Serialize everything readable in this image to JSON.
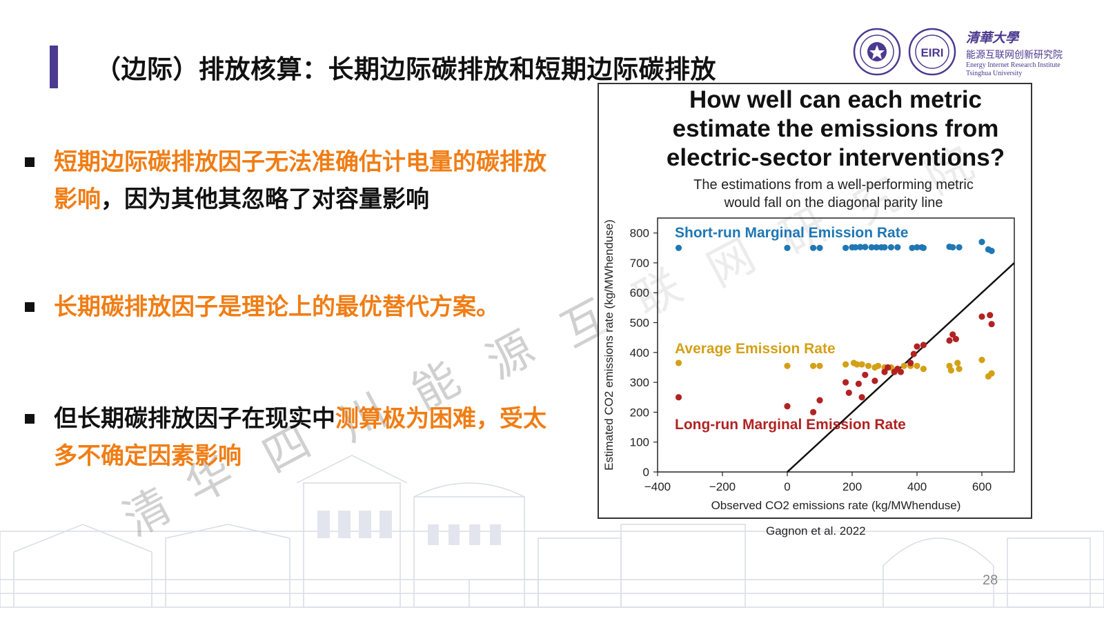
{
  "slide": {
    "title": "（边际）排放核算：长期边际碳排放和短期边际碳排放",
    "page_number": "28",
    "citation": "Gagnon et al. 2022",
    "accent_color": "#4b3a8f",
    "highlight_color": "#f07d14"
  },
  "logos": {
    "script_name": "清華大學",
    "institute_cn": "能源互联网创新研究院",
    "institute_en_1": "Energy Internet Research Institute",
    "institute_en_2": "Tsinghua University",
    "seal_2_text": "EIRI"
  },
  "watermark": [
    "清",
    "华",
    "四",
    "川",
    "能",
    "源",
    "互",
    "联",
    "网",
    "研",
    "究",
    "院"
  ],
  "bullets": {
    "b1_orange": "短期边际碳排放因子无法准确估计电量的碳排放影响",
    "b1_black": "，因为其他其忽略了对容量影响",
    "b2_orange": "长期碳排放因子是理论上的最优替代方案。",
    "b3_black": "但长期碳排放因子在现实中",
    "b3_orange": "测算极为困难，受太多不确定因素影响"
  },
  "chart_data": {
    "type": "scatter",
    "title_lines": [
      "How well can each metric",
      "estimate the emissions from",
      "electric-sector interventions?"
    ],
    "subtitle_lines": [
      "The estimations from a well-performing metric",
      "would fall on the diagonal parity line"
    ],
    "xlabel": "Observed CO2 emissions rate (kg/MWhenduse)",
    "ylabel": "Estimated CO2 emissions rate (kg/MWhenduse)",
    "xlim": [
      -400,
      700
    ],
    "ylim": [
      0,
      850
    ],
    "xticks": [
      -400,
      -200,
      0,
      200,
      400,
      600
    ],
    "xtick_labels": [
      "−400",
      "−200",
      "0",
      "200",
      "400",
      "600"
    ],
    "yticks": [
      0,
      100,
      200,
      300,
      400,
      500,
      600,
      700,
      800
    ],
    "yticks_labels": [
      "0",
      "100",
      "200",
      "300",
      "400",
      "500",
      "600",
      "700",
      "800"
    ],
    "parity_line": true,
    "series": [
      {
        "name": "Short-run Marginal Emission Rate",
        "color": "#1f77b4",
        "points": [
          [
            -335,
            750
          ],
          [
            0,
            750
          ],
          [
            80,
            750
          ],
          [
            100,
            750
          ],
          [
            180,
            750
          ],
          [
            200,
            752
          ],
          [
            210,
            752
          ],
          [
            225,
            753
          ],
          [
            240,
            753
          ],
          [
            260,
            752
          ],
          [
            275,
            752
          ],
          [
            290,
            752
          ],
          [
            300,
            752
          ],
          [
            320,
            752
          ],
          [
            340,
            752
          ],
          [
            385,
            750
          ],
          [
            400,
            752
          ],
          [
            415,
            752
          ],
          [
            420,
            750
          ],
          [
            500,
            754
          ],
          [
            510,
            752
          ],
          [
            530,
            752
          ],
          [
            600,
            770
          ],
          [
            620,
            745
          ],
          [
            630,
            740
          ]
        ]
      },
      {
        "name": "Average Emission Rate",
        "color": "#d4a017",
        "points": [
          [
            -335,
            365
          ],
          [
            0,
            355
          ],
          [
            80,
            355
          ],
          [
            100,
            355
          ],
          [
            180,
            360
          ],
          [
            205,
            365
          ],
          [
            215,
            360
          ],
          [
            230,
            360
          ],
          [
            250,
            355
          ],
          [
            270,
            350
          ],
          [
            280,
            355
          ],
          [
            300,
            350
          ],
          [
            320,
            350
          ],
          [
            340,
            345
          ],
          [
            360,
            355
          ],
          [
            380,
            355
          ],
          [
            400,
            355
          ],
          [
            420,
            345
          ],
          [
            500,
            355
          ],
          [
            505,
            340
          ],
          [
            525,
            365
          ],
          [
            530,
            345
          ],
          [
            600,
            375
          ],
          [
            620,
            320
          ],
          [
            630,
            330
          ]
        ]
      },
      {
        "name": "Long-run Marginal Emission Rate",
        "color": "#b22222",
        "points": [
          [
            -335,
            250
          ],
          [
            0,
            220
          ],
          [
            80,
            200
          ],
          [
            100,
            240
          ],
          [
            180,
            300
          ],
          [
            190,
            265
          ],
          [
            220,
            295
          ],
          [
            230,
            250
          ],
          [
            240,
            325
          ],
          [
            270,
            305
          ],
          [
            300,
            335
          ],
          [
            310,
            350
          ],
          [
            330,
            335
          ],
          [
            340,
            345
          ],
          [
            350,
            335
          ],
          [
            380,
            365
          ],
          [
            390,
            395
          ],
          [
            400,
            420
          ],
          [
            420,
            425
          ],
          [
            500,
            440
          ],
          [
            510,
            460
          ],
          [
            520,
            445
          ],
          [
            600,
            520
          ],
          [
            625,
            525
          ],
          [
            630,
            495
          ]
        ]
      }
    ]
  }
}
